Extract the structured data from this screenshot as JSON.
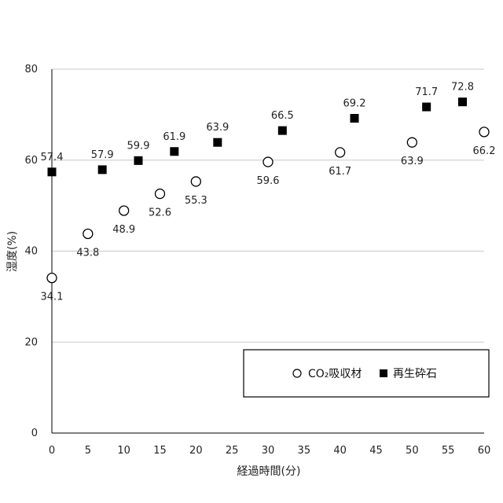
{
  "chart_data": {
    "type": "scatter",
    "xlabel": "経過時間(分)",
    "ylabel": "湿度(%)",
    "xlim": [
      0,
      60
    ],
    "ylim": [
      0,
      80
    ],
    "xticks": [
      0,
      5,
      10,
      15,
      20,
      25,
      30,
      35,
      40,
      45,
      50,
      55,
      60
    ],
    "yticks": [
      0,
      20,
      40,
      60,
      80
    ],
    "grid": "horizontal",
    "legend_position": "bottom-right",
    "series": [
      {
        "name": "CO₂吸収材",
        "marker": "open-circle",
        "color": "#000000",
        "x": [
          0,
          5,
          10,
          15,
          20,
          30,
          40,
          50,
          60
        ],
        "y": [
          34.1,
          43.8,
          48.9,
          52.6,
          55.3,
          59.6,
          61.7,
          63.9,
          66.2
        ],
        "labels": [
          "34.1",
          "43.8",
          "48.9",
          "52.6",
          "55.3",
          "59.6",
          "61.7",
          "63.9",
          "66.2"
        ],
        "label_position": "below"
      },
      {
        "name": "再生砕石",
        "marker": "filled-square",
        "color": "#000000",
        "x": [
          0,
          7,
          12,
          17,
          23,
          32,
          42,
          52,
          57
        ],
        "y": [
          57.4,
          57.9,
          59.9,
          61.9,
          63.9,
          66.5,
          69.2,
          71.7,
          72.8
        ],
        "labels": [
          "57.4",
          "57.9",
          "59.9",
          "61.9",
          "63.9",
          "66.5",
          "69.2",
          "71.7",
          "72.8"
        ],
        "label_position": "above"
      }
    ]
  }
}
